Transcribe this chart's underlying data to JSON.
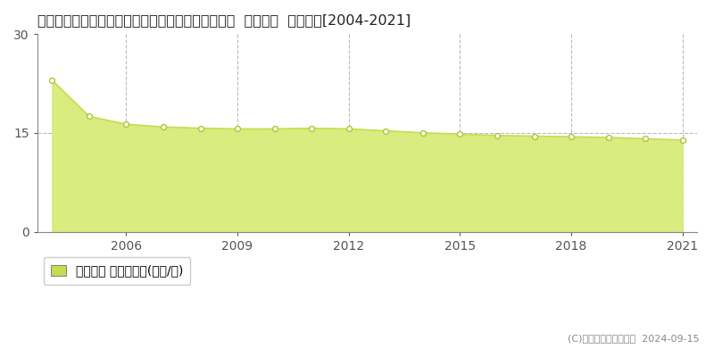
{
  "title": "愛知県知多郡南知多町大字内海字亥新田１１９番外  地価公示  地価推移[2004-2021]",
  "years": [
    2004,
    2005,
    2006,
    2007,
    2008,
    2009,
    2010,
    2011,
    2012,
    2013,
    2014,
    2015,
    2016,
    2017,
    2018,
    2019,
    2020,
    2021
  ],
  "values": [
    23.0,
    17.5,
    16.3,
    15.9,
    15.7,
    15.6,
    15.6,
    15.7,
    15.6,
    15.3,
    15.0,
    14.8,
    14.6,
    14.5,
    14.4,
    14.3,
    14.1,
    13.9
  ],
  "ylim": [
    0,
    30
  ],
  "yticks": [
    0,
    15,
    30
  ],
  "xticks": [
    2006,
    2009,
    2012,
    2015,
    2018,
    2021
  ],
  "line_color": "#c8dc50",
  "fill_color": "#d8ec80",
  "marker_facecolor": "#ffffff",
  "marker_edgecolor": "#a8c830",
  "grid_color": "#bbbbbb",
  "bg_color": "#ffffff",
  "plot_area_bg": "#ffffff",
  "legend_label": "地価公示 平均坪単価(万円/坪)",
  "legend_square_color": "#c8dc50",
  "legend_square_edge": "#888888",
  "copyright_text": "(C)土地価格ドットコム  2024-09-15",
  "title_fontsize": 11.5,
  "axis_fontsize": 10,
  "legend_fontsize": 10,
  "copyright_fontsize": 8
}
